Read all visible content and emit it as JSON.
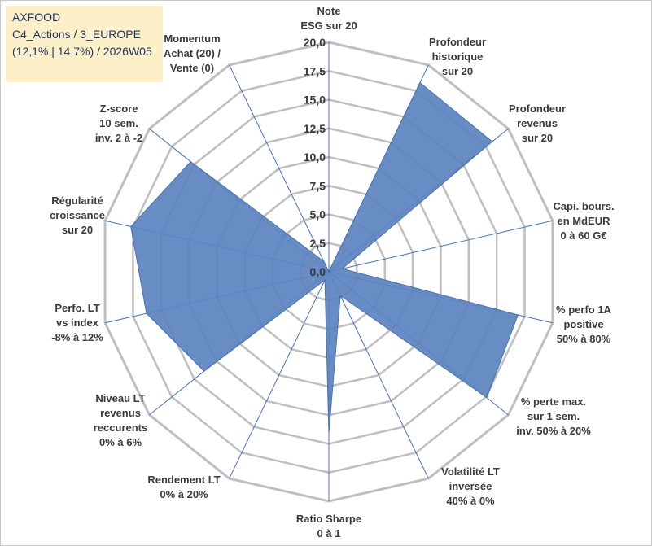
{
  "header": {
    "line1": "AXFOOD",
    "line2": "C4_Actions / 3_EUROPE",
    "line3": "(12,1% | 14,7%) / 2026W05"
  },
  "colors": {
    "fill": "#5b83bf",
    "stroke": "#4a72b0",
    "grid": "#bfbfbf",
    "spoke": "#4472c4",
    "title_bg": "#fdf0c8"
  },
  "chart_data": {
    "type": "radar",
    "title": "AXFOOD",
    "rmin": 0,
    "rmax": 20,
    "step": 2.5,
    "tick_labels": [
      "0,0",
      "2,5",
      "5,0",
      "7,5",
      "10,0",
      "12,5",
      "15,0",
      "17,5",
      "20,0"
    ],
    "categories": [
      [
        "Note",
        "ESG sur 20"
      ],
      [
        "Profondeur",
        "historique",
        "sur 20"
      ],
      [
        "Profondeur",
        "revenus",
        "sur 20"
      ],
      [
        "Capi. bours.",
        "en MdEUR",
        "0 à 60 G€"
      ],
      [
        "% perfo 1A",
        "positive",
        "50% à 80%"
      ],
      [
        "% perte max.",
        "sur 1 sem.",
        "inv. 50% à 20%"
      ],
      [
        "Volatilité LT",
        "inversée",
        "40% à 0%"
      ],
      [
        "Ratio Sharpe",
        "0 à 1"
      ],
      [
        "Rendement LT",
        "0% à 20%"
      ],
      [
        "Niveau LT",
        "revenus",
        "reccurents",
        "0% à 6%"
      ],
      [
        "Perfo. LT",
        "vs index",
        "-8% à 12%"
      ],
      [
        "Régularité",
        "croissance",
        "sur 20"
      ],
      [
        "Z-score",
        "10 sem.",
        "inv. 2 à -2"
      ],
      [
        "Momentum",
        "Achat (20) /",
        "Vente (0)"
      ]
    ],
    "values": [
      0,
      18.3,
      18.2,
      1.2,
      16.9,
      17.6,
      2.3,
      14.1,
      0.8,
      13.9,
      16.3,
      17.7,
      15.4,
      1.0
    ]
  }
}
